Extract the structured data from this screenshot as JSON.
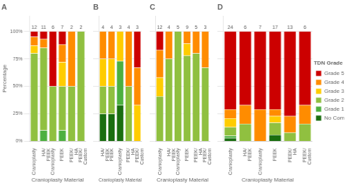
{
  "chart_data": [
    {
      "type": "bar",
      "stacked": true,
      "title": "A",
      "x_label": "Cranioplasty Material",
      "y_label": "Percentage",
      "categories": [
        "Cranioplasty",
        "HA/\nPEEK",
        "Cranioplasty",
        "PEEK",
        "PEEK/\nHA",
        "PEEK/\nCustom"
      ],
      "counts": [
        12,
        11,
        6,
        7,
        2,
        2
      ],
      "series": [
        {
          "name": "No Complication",
          "color": "#1a6e10",
          "values": [
            0.0,
            0.0,
            0.0,
            0.0,
            0.0,
            0.0
          ]
        },
        {
          "name": "Grade 1",
          "color": "#4db040",
          "values": [
            0.0,
            0.1,
            0.0,
            0.1,
            0.0,
            0.0
          ]
        },
        {
          "name": "Grade 2",
          "color": "#90c040",
          "values": [
            0.8,
            0.75,
            0.5,
            0.4,
            0.5,
            1.0
          ]
        },
        {
          "name": "Grade 3",
          "color": "#ffcc00",
          "values": [
            0.07,
            0.0,
            0.0,
            0.22,
            0.0,
            0.0
          ]
        },
        {
          "name": "Grade 4",
          "color": "#ff8c00",
          "values": [
            0.08,
            0.08,
            0.0,
            0.16,
            0.5,
            0.0
          ]
        },
        {
          "name": "Grade 5",
          "color": "#cc0000",
          "values": [
            0.05,
            0.07,
            0.5,
            0.12,
            0.0,
            0.0
          ]
        }
      ],
      "ylim": [
        0,
        1.14
      ],
      "yticks": [
        {
          "value": 0,
          "label": "0%"
        },
        {
          "value": 0.25,
          "label": "25%"
        },
        {
          "value": 0.5,
          "label": "50%"
        },
        {
          "value": 0.75,
          "label": "75%"
        },
        {
          "value": 1.0,
          "label": "100%"
        }
      ],
      "grid": true
    },
    {
      "type": "bar",
      "stacked": true,
      "title": "B",
      "x_label": "Cranioplasty Material",
      "categories": [
        "HA/\nPEEK",
        "PEEK",
        "Cranioplasty",
        "PEEK/\nHA",
        "PEEK/\nCustom"
      ],
      "counts": [
        4,
        4,
        3,
        4,
        3
      ],
      "series": [
        {
          "name": "No Complication",
          "color": "#1a6e10",
          "values": [
            0.25,
            0.25,
            0.33,
            0.0,
            0.0
          ]
        },
        {
          "name": "Grade 1",
          "color": "#4db040",
          "values": [
            0.0,
            0.0,
            0.4,
            0.0,
            0.0
          ]
        },
        {
          "name": "Grade 2",
          "color": "#90c040",
          "values": [
            0.25,
            0.25,
            0.0,
            0.5,
            0.0
          ]
        },
        {
          "name": "Grade 3",
          "color": "#ffcc00",
          "values": [
            0.25,
            0.25,
            0.27,
            0.0,
            0.33
          ]
        },
        {
          "name": "Grade 4",
          "color": "#ff8c00",
          "values": [
            0.25,
            0.25,
            0.0,
            0.5,
            0.34
          ]
        },
        {
          "name": "Grade 5",
          "color": "#cc0000",
          "values": [
            0.0,
            0.0,
            0.0,
            0.0,
            0.33
          ]
        }
      ],
      "ylim": [
        0,
        1.14
      ],
      "yticks": [
        {
          "value": 0,
          "label": "0%"
        },
        {
          "value": 0.25,
          "label": "25%"
        },
        {
          "value": 0.5,
          "label": "50%"
        },
        {
          "value": 0.75,
          "label": "75%"
        },
        {
          "value": 1.0,
          "label": "100%"
        }
      ],
      "tick_labels": "x",
      "grid": true
    },
    {
      "type": "bar",
      "stacked": true,
      "title": "C",
      "x_label": "Cranioplasty Material",
      "categories": [
        "Cranioplasty",
        "HA/\nPEEK",
        "Cranioplasty",
        "PEEK",
        "PEEK/\nHA",
        "PEEK/\nCustom"
      ],
      "counts": [
        12,
        4,
        5,
        9,
        5,
        3
      ],
      "series": [
        {
          "name": "No Complication",
          "color": "#1a6e10",
          "values": [
            0.0,
            0.0,
            0.0,
            0.0,
            0.0,
            0.0
          ]
        },
        {
          "name": "Grade 1",
          "color": "#4db040",
          "values": [
            0.0,
            0.0,
            0.0,
            0.0,
            0.0,
            0.0
          ]
        },
        {
          "name": "Grade 2",
          "color": "#90c040",
          "values": [
            0.41,
            0.75,
            1.0,
            0.78,
            0.8,
            0.67
          ]
        },
        {
          "name": "Grade 3",
          "color": "#ffcc00",
          "values": [
            0.17,
            0.0,
            0.0,
            0.11,
            0.0,
            0.0
          ]
        },
        {
          "name": "Grade 4",
          "color": "#ff8c00",
          "values": [
            0.25,
            0.25,
            0.0,
            0.11,
            0.2,
            0.33
          ]
        },
        {
          "name": "Grade 5",
          "color": "#cc0000",
          "values": [
            0.17,
            0.0,
            0.0,
            0.0,
            0.0,
            0.0
          ]
        }
      ],
      "ylim": [
        0,
        1.14
      ],
      "yticks": [
        {
          "value": 0,
          "label": "0%"
        },
        {
          "value": 0.25,
          "label": "25%"
        },
        {
          "value": 0.5,
          "label": "50%"
        },
        {
          "value": 0.75,
          "label": "75%"
        },
        {
          "value": 1.0,
          "label": "100%"
        }
      ],
      "tick_labels": "x",
      "grid": true
    },
    {
      "type": "bar",
      "stacked": true,
      "title": "D",
      "x_label": "Cranioplasty Material",
      "categories": [
        "Cranioplasty",
        "HA/\nPEEK",
        "Cranioplasty",
        "PEEK",
        "PEEK/\nHA",
        "PEEK/\nCustom"
      ],
      "counts": [
        24,
        6,
        7,
        17,
        13,
        6
      ],
      "series": [
        {
          "name": "No Complication",
          "color": "#1a6e10",
          "values": [
            0.03,
            0.0,
            0.0,
            0.06,
            0.0,
            0.0
          ]
        },
        {
          "name": "Grade 1",
          "color": "#4db040",
          "values": [
            0.02,
            0.0,
            0.0,
            0.0,
            0.0,
            0.0
          ]
        },
        {
          "name": "Grade 2",
          "color": "#90c040",
          "values": [
            0.08,
            0.16,
            0.0,
            0.11,
            0.08,
            0.16
          ]
        },
        {
          "name": "Grade 3",
          "color": "#ffcc00",
          "values": [
            0.08,
            0.0,
            0.0,
            0.06,
            0.0,
            0.0
          ]
        },
        {
          "name": "Grade 4",
          "color": "#ff8c00",
          "values": [
            0.08,
            0.17,
            0.29,
            0.06,
            0.15,
            0.17
          ]
        },
        {
          "name": "Grade 5",
          "color": "#cc0000",
          "values": [
            0.71,
            0.67,
            0.71,
            0.71,
            0.77,
            0.67
          ]
        }
      ],
      "ylim": [
        0,
        1.14
      ],
      "yticks": [
        {
          "value": 0,
          "label": "0%"
        },
        {
          "value": 0.25,
          "label": "25%"
        },
        {
          "value": 0.5,
          "label": "50%"
        },
        {
          "value": 0.75,
          "label": "75%"
        },
        {
          "value": 1.0,
          "label": "100%"
        }
      ],
      "tick_labels": "x",
      "grid": true,
      "legend": "right",
      "legend_title": "TDN Grade"
    }
  ]
}
